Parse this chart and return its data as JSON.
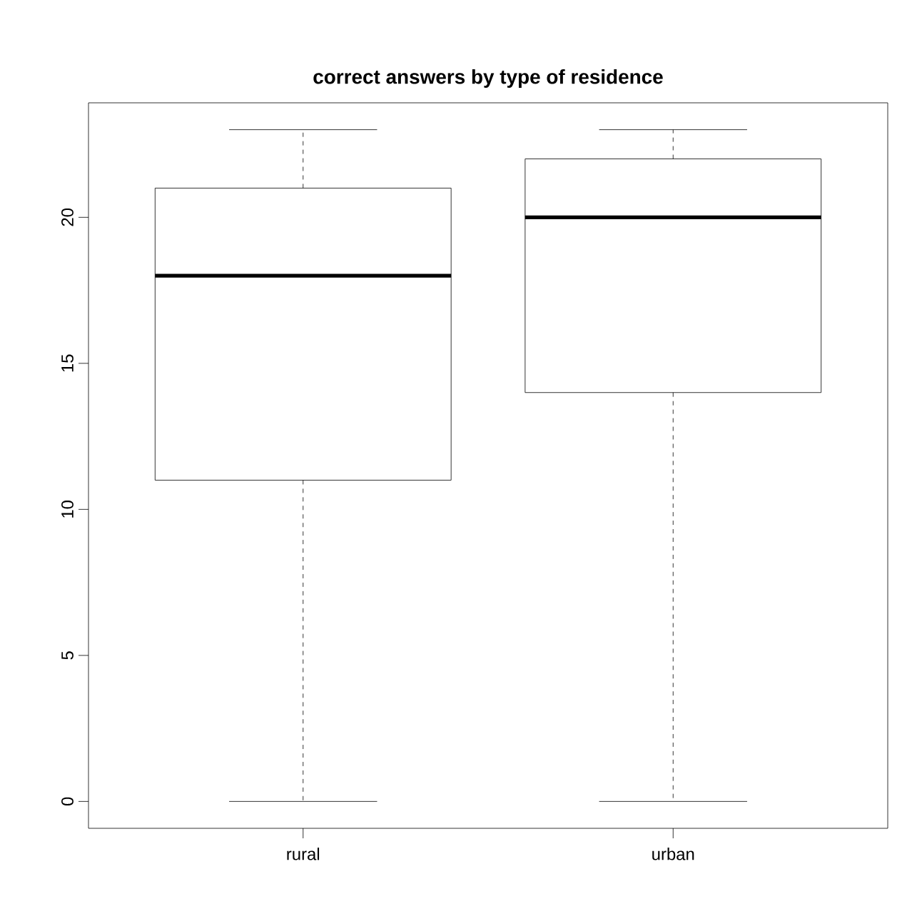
{
  "chart_data": {
    "type": "box",
    "title": "correct answers by type of residence",
    "categories": [
      "rural",
      "urban"
    ],
    "boxes": [
      {
        "low": 0,
        "q1": 11,
        "median": 18,
        "q3": 21,
        "high": 23
      },
      {
        "low": 0,
        "q1": 14,
        "median": 20,
        "q3": 22,
        "high": 23
      }
    ],
    "ylim": [
      -0.92,
      23.92
    ],
    "yticks": [
      0,
      5,
      10,
      15,
      20
    ],
    "grid": false
  }
}
